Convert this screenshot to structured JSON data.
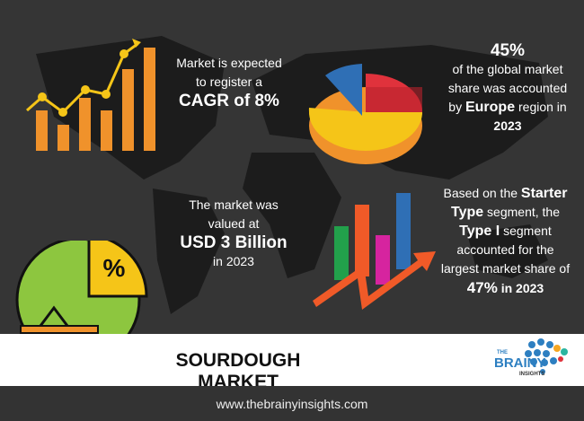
{
  "infographic": {
    "cagr": {
      "line1": "Market is expected",
      "line2": "to register a",
      "highlight": "CAGR of 8%"
    },
    "europe": {
      "percent": "45%",
      "line1": "of the global market",
      "line2": "share was accounted",
      "by": "by",
      "region": "Europe",
      "line3": "region in",
      "year": "2023"
    },
    "value": {
      "line1": "The market was",
      "line2": "valued at",
      "highlight": "USD 3 Billion",
      "line3": "in 2023"
    },
    "segment": {
      "p1": "Based on the",
      "b1": "Starter",
      "b2": "Type",
      "p2": "segment, the",
      "b3": "Type I",
      "p3": "segment",
      "line3": "accounted for the",
      "line4": "largest market share of",
      "b4": "47%",
      "p4": "in 2023"
    },
    "percent_symbol": "%"
  },
  "footer": {
    "title": "SOURDOUGH MARKET",
    "url": "www.thebrainyinsights.com",
    "logo_text": [
      "THE",
      "BRAINY",
      "INSIGHTS"
    ]
  },
  "colors": {
    "background": "#353535",
    "orange": "#f0922b",
    "yellow": "#f5c518",
    "red": "#e0323c",
    "blue": "#2f6fb5",
    "green": "#8dc63f",
    "logo_blue": "#2d7fc1"
  }
}
